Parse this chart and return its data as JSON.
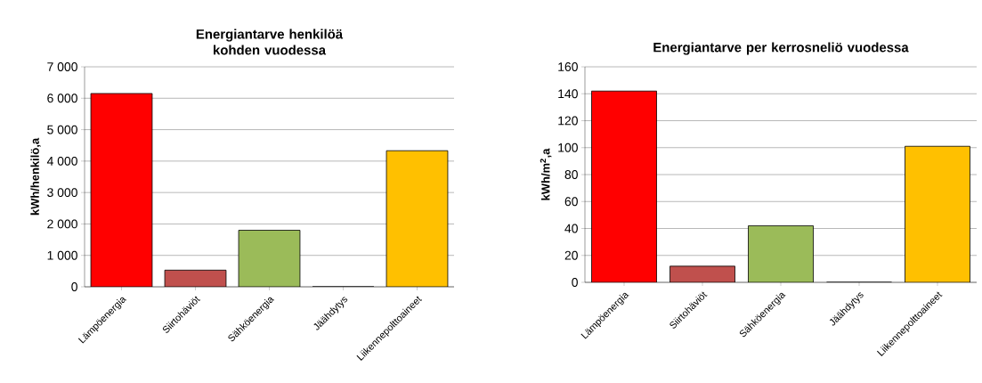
{
  "chart_data": [
    {
      "type": "bar",
      "title": "Energiantarve henkilöä kohden vuodessa",
      "ylabel": "kWh/henkilö,a",
      "categories": [
        "Lämpöenergia",
        "Siirtohäviöt",
        "Sähköenergia",
        "Jäähdytys",
        "Liikennepolttoaineet"
      ],
      "values": [
        6150,
        530,
        1800,
        0,
        4330
      ],
      "colors": [
        "#ff0000",
        "#c0504d",
        "#9bbb59",
        null,
        "#ffc000"
      ],
      "ylim": [
        0,
        7000
      ],
      "yticks": [
        {
          "value": 0,
          "label": "0"
        },
        {
          "value": 1000,
          "label": "1 000"
        },
        {
          "value": 2000,
          "label": "2 000"
        },
        {
          "value": 3000,
          "label": "3 000"
        },
        {
          "value": 4000,
          "label": "4 000"
        },
        {
          "value": 5000,
          "label": "5 000"
        },
        {
          "value": 6000,
          "label": "6 000"
        },
        {
          "value": 7000,
          "label": "7 000"
        }
      ],
      "grid": "y"
    },
    {
      "type": "bar",
      "title": "Energiantarve per kerrosneliö vuodessa",
      "ylabel": "kWh/m$^{2}$,a",
      "categories": [
        "Lämpöenergia",
        "Siirtohäviöt",
        "Sähköenergia",
        "Jäähdytys",
        "Liikennepolttoaineet"
      ],
      "values": [
        142,
        12,
        42,
        0,
        101
      ],
      "colors": [
        "#ff0000",
        "#c0504d",
        "#9bbb59",
        null,
        "#ffc000"
      ],
      "ylim": [
        0,
        160
      ],
      "yticks": [
        0,
        20,
        40,
        60,
        80,
        100,
        120,
        140,
        160
      ],
      "grid": "y"
    }
  ]
}
